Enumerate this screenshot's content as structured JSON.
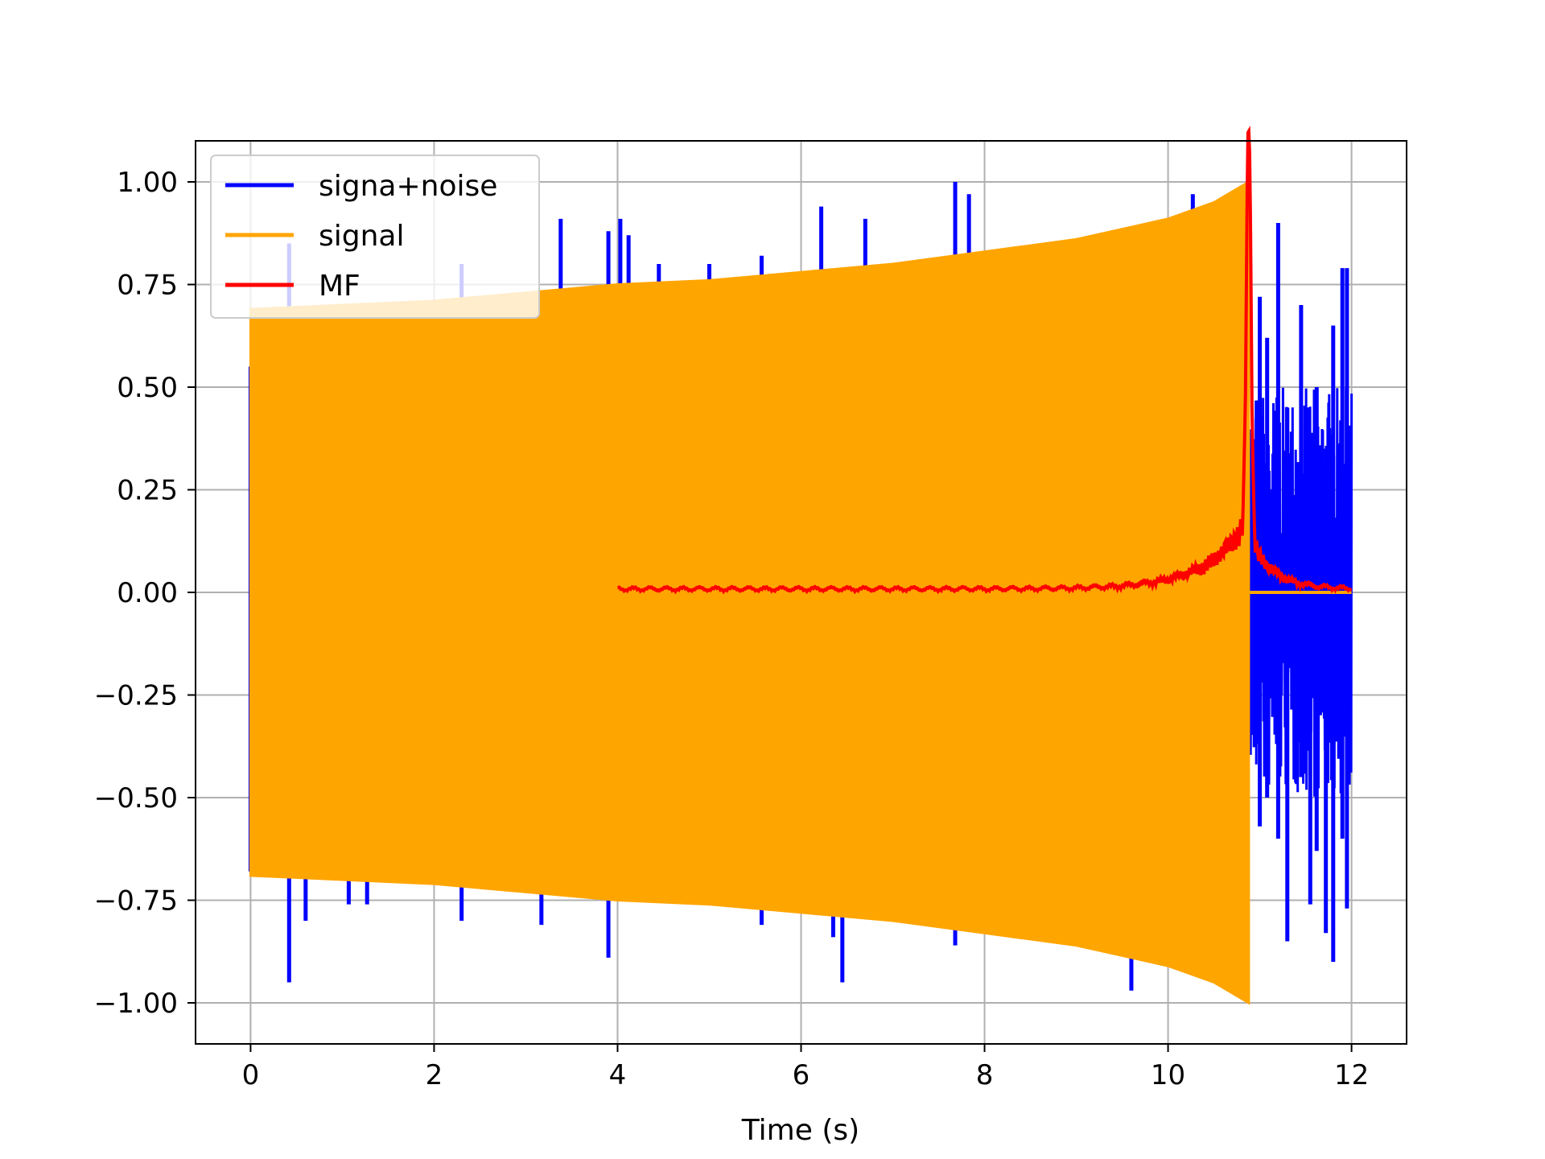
{
  "chart_data": {
    "type": "line",
    "title": "",
    "xlabel": "Time (s)",
    "ylabel": "",
    "xlim": [
      -0.6,
      12.6
    ],
    "ylim": [
      -1.1,
      1.1
    ],
    "grid": true,
    "legend_position": "top-left",
    "xticks": [
      0,
      2,
      4,
      6,
      8,
      10,
      12
    ],
    "xtick_labels": [
      "0",
      "2",
      "4",
      "6",
      "8",
      "10",
      "12"
    ],
    "yticks": [
      1.0,
      0.75,
      0.5,
      0.25,
      0.0,
      -0.25,
      -0.5,
      -0.75,
      -1.0
    ],
    "ytick_labels": [
      "1.00",
      "0.75",
      "0.50",
      "0.25",
      "0.00",
      "−0.25",
      "−0.50",
      "−0.75",
      "−1.00"
    ],
    "series": [
      {
        "name": "signa+noise",
        "color": "#0000ff",
        "kind": "noisy-oscillation",
        "x_range": [
          0,
          12
        ],
        "spikes": [
          {
            "x": 0.42,
            "y": 0.85
          },
          {
            "x": 0.42,
            "y": -0.95
          },
          {
            "x": 0.6,
            "y": -0.8
          },
          {
            "x": 1.07,
            "y": -0.76
          },
          {
            "x": 1.27,
            "y": -0.76
          },
          {
            "x": 2.3,
            "y": 0.8
          },
          {
            "x": 2.3,
            "y": -0.8
          },
          {
            "x": 3.17,
            "y": -0.81
          },
          {
            "x": 3.38,
            "y": 0.91
          },
          {
            "x": 3.9,
            "y": 0.88
          },
          {
            "x": 3.9,
            "y": -0.89
          },
          {
            "x": 4.03,
            "y": 0.91
          },
          {
            "x": 4.12,
            "y": 0.87
          },
          {
            "x": 4.45,
            "y": 0.8
          },
          {
            "x": 5.0,
            "y": 0.8
          },
          {
            "x": 5.57,
            "y": 0.82
          },
          {
            "x": 5.57,
            "y": -0.81
          },
          {
            "x": 6.22,
            "y": 0.94
          },
          {
            "x": 6.35,
            "y": -0.84
          },
          {
            "x": 6.45,
            "y": -0.95
          },
          {
            "x": 6.7,
            "y": 0.91
          },
          {
            "x": 7.68,
            "y": 1.0
          },
          {
            "x": 7.68,
            "y": -0.86
          },
          {
            "x": 7.83,
            "y": 0.97
          },
          {
            "x": 9.6,
            "y": -0.97
          },
          {
            "x": 10.27,
            "y": 0.97
          }
        ],
        "tail": {
          "x_range": [
            10.87,
            12.0
          ],
          "peaks": [
            {
              "x": 11.0,
              "y": 0.72,
              "ymin": -0.57
            },
            {
              "x": 11.08,
              "y": 0.62,
              "ymin": -0.5
            },
            {
              "x": 11.2,
              "y": 0.9,
              "ymin": -0.6
            },
            {
              "x": 11.3,
              "y": 0.45,
              "ymin": -0.85
            },
            {
              "x": 11.45,
              "y": 0.7,
              "ymin": -0.45
            },
            {
              "x": 11.55,
              "y": 0.35,
              "ymin": -0.76
            },
            {
              "x": 11.62,
              "y": 0.5,
              "ymin": -0.63
            },
            {
              "x": 11.72,
              "y": 0.35,
              "ymin": -0.83
            },
            {
              "x": 11.8,
              "y": 0.65,
              "ymin": -0.9
            },
            {
              "x": 11.9,
              "y": 0.79,
              "ymin": -0.6
            },
            {
              "x": 11.95,
              "y": 0.79,
              "ymin": -0.77
            }
          ]
        }
      },
      {
        "name": "signal",
        "color": "#ffa500",
        "kind": "chirp-envelope",
        "x": [
          0,
          1,
          2,
          3,
          4,
          5,
          6,
          7,
          8,
          9,
          10,
          10.5,
          10.88
        ],
        "upper": [
          0.69,
          0.7,
          0.71,
          0.73,
          0.75,
          0.76,
          0.78,
          0.8,
          0.83,
          0.86,
          0.91,
          0.95,
          1.0
        ],
        "lower": [
          -0.69,
          -0.7,
          -0.71,
          -0.73,
          -0.75,
          -0.76,
          -0.78,
          -0.8,
          -0.83,
          -0.86,
          -0.91,
          -0.95,
          -1.0
        ],
        "flat_after": {
          "x_range": [
            10.88,
            12.0
          ],
          "y": 0.0
        }
      },
      {
        "name": "MF",
        "color": "#ff0000",
        "kind": "matched-filter",
        "x_range": [
          4.0,
          12.0
        ],
        "peak": {
          "x": 10.88,
          "y": 1.0
        },
        "baseline": 0.01
      }
    ]
  }
}
